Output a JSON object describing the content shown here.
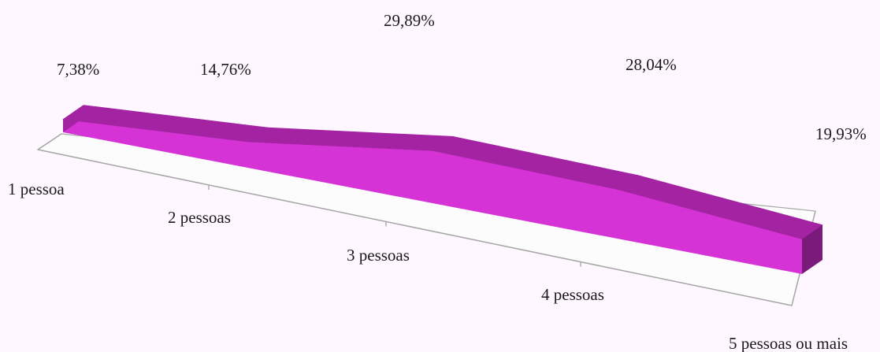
{
  "chart_data": {
    "type": "area",
    "style": "3d",
    "categories": [
      "1 pessoa",
      "2 pessoas",
      "3 pessoas",
      "4 pessoas",
      "5 pessoas ou mais"
    ],
    "values": [
      7.38,
      14.76,
      29.89,
      28.04,
      19.93
    ],
    "data_labels": [
      "7,38%",
      "14,76%",
      "29,89%",
      "28,04%",
      "19,93%"
    ],
    "unit": "%",
    "grid": false,
    "legend": "none",
    "colors": {
      "front_face": "#d633d6",
      "top_face": "#a323a3",
      "side_face": "#7a1a7a",
      "floor": "#fcfcfc",
      "axis": "#a8a8a8",
      "background": "#fff7ff"
    }
  }
}
